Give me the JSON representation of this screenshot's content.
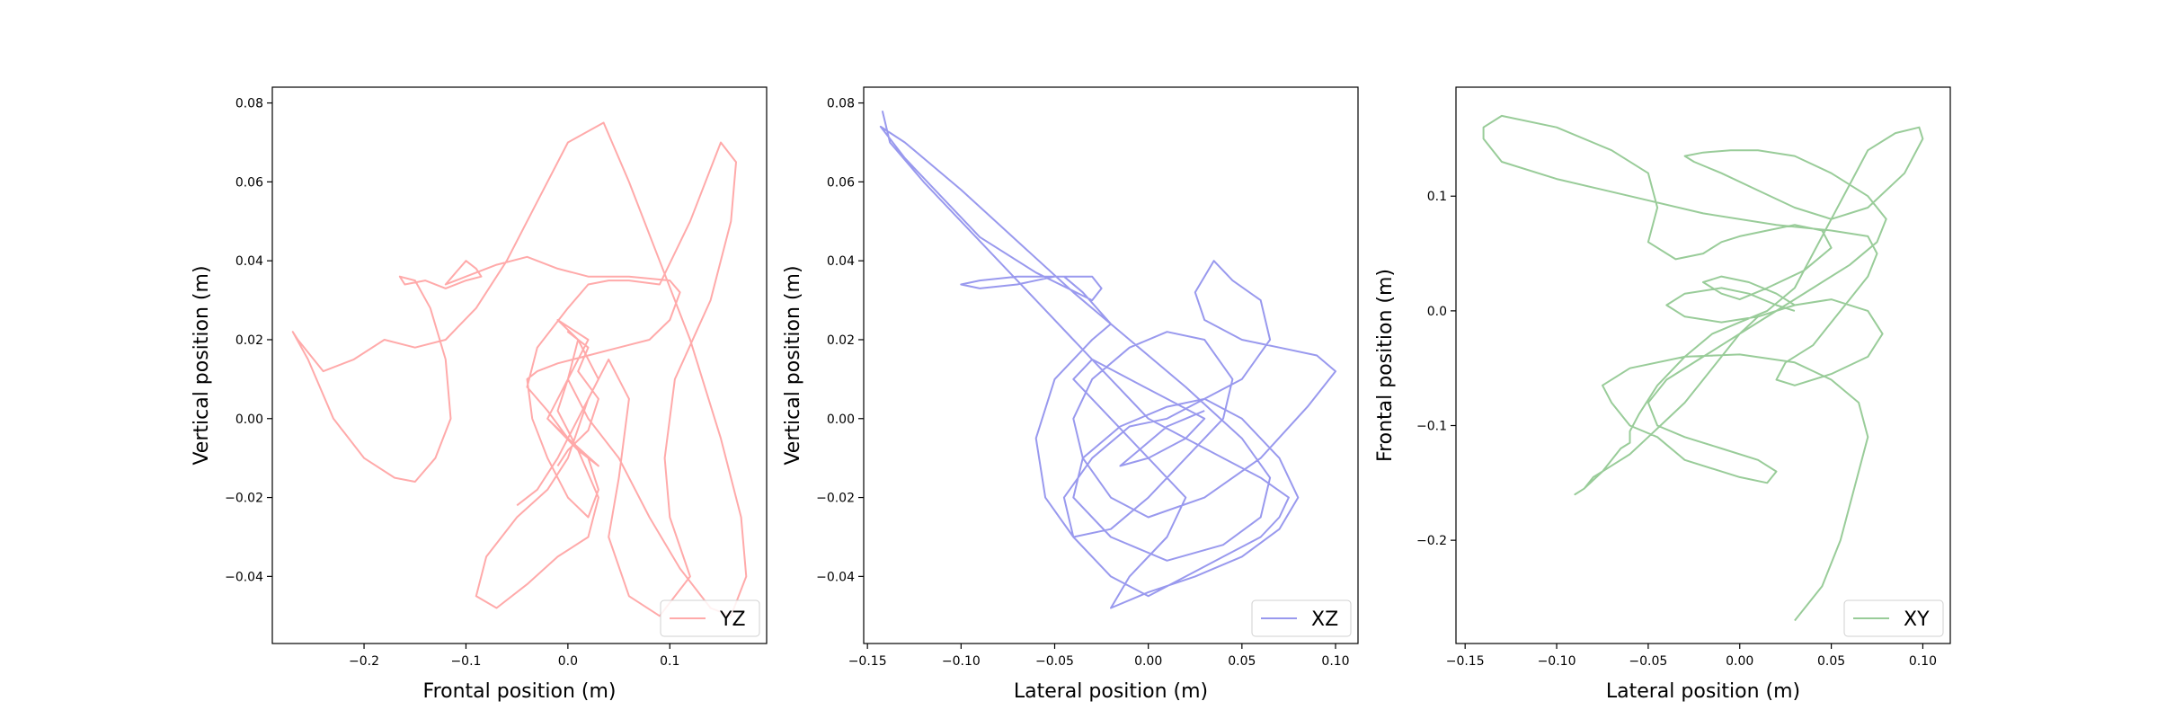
{
  "chart_data": [
    {
      "type": "line",
      "xlabel": "Frontal position (m)",
      "ylabel": "Vertical position  (m)",
      "xlim": [
        -0.29,
        0.195
      ],
      "ylim": [
        -0.057,
        0.084
      ],
      "xticks": [
        -0.2,
        -0.1,
        0.0,
        0.1
      ],
      "xtick_labels": [
        "−0.2",
        "−0.1",
        "0.0",
        "0.1"
      ],
      "yticks": [
        -0.04,
        -0.02,
        0.0,
        0.02,
        0.04,
        0.06,
        0.08
      ],
      "ytick_labels": [
        "−0.04",
        "−0.02",
        "0.00",
        "0.02",
        "0.04",
        "0.06",
        "0.08"
      ],
      "legend_position": "lower right",
      "series": [
        {
          "name": "YZ",
          "color": "#ffaaaa",
          "x": [
            -0.05,
            -0.03,
            -0.01,
            0.01,
            0.03,
            0.01,
            -0.01,
            0.02,
            0.0,
            -0.02,
            0.01,
            0.03,
            0.0,
            -0.02,
            -0.04,
            -0.03,
            0.0,
            0.02,
            0.04,
            0.06,
            0.09,
            0.12,
            0.15,
            0.165,
            0.16,
            0.14,
            0.105,
            0.095,
            0.1,
            0.12,
            0.09,
            0.06,
            0.04,
            0.05,
            0.06,
            0.04,
            0.02,
            0.0,
            -0.02,
            -0.05,
            -0.08,
            -0.09,
            -0.07,
            -0.04,
            -0.01,
            0.02,
            0.03,
            0.01,
            -0.01,
            0.0,
            0.02,
            0.05,
            0.08,
            0.11,
            0.14,
            0.16,
            0.175,
            0.17,
            0.15,
            0.12,
            0.09,
            0.06,
            0.035,
            0.0,
            -0.03,
            -0.06,
            -0.09,
            -0.12,
            -0.15,
            -0.18,
            -0.21,
            -0.24,
            -0.265,
            -0.27,
            -0.255,
            -0.23,
            -0.2,
            -0.17,
            -0.15,
            -0.13,
            -0.115,
            -0.12,
            -0.135,
            -0.15,
            -0.165,
            -0.16,
            -0.14,
            -0.12,
            -0.1,
            -0.085,
            -0.09,
            -0.1,
            -0.11,
            -0.12,
            -0.1,
            -0.07,
            -0.04,
            -0.01,
            0.02,
            0.06,
            0.1,
            0.11,
            0.1,
            0.08,
            0.05,
            0.02,
            -0.01,
            -0.03,
            -0.04,
            -0.035,
            -0.02,
            0.0,
            0.02,
            0.03,
            0.02,
            0.0,
            -0.02,
            0.0,
            0.01,
            0.0,
            0.02,
            0.01,
            0.03,
            0.02,
            0.0,
            -0.01
          ],
          "y": [
            -0.022,
            -0.018,
            -0.01,
            0.0,
            0.01,
            0.02,
            0.025,
            0.02,
            0.01,
            0.0,
            -0.008,
            -0.012,
            -0.005,
            0.002,
            0.008,
            0.018,
            0.028,
            0.034,
            0.035,
            0.035,
            0.034,
            0.05,
            0.07,
            0.065,
            0.05,
            0.03,
            0.01,
            -0.01,
            -0.025,
            -0.04,
            -0.05,
            -0.045,
            -0.03,
            -0.015,
            0.005,
            0.015,
            0.005,
            -0.01,
            -0.018,
            -0.025,
            -0.035,
            -0.045,
            -0.048,
            -0.042,
            -0.035,
            -0.03,
            -0.02,
            -0.008,
            0.002,
            0.01,
            0.0,
            -0.01,
            -0.025,
            -0.038,
            -0.048,
            -0.05,
            -0.04,
            -0.025,
            -0.005,
            0.02,
            0.04,
            0.06,
            0.075,
            0.07,
            0.055,
            0.04,
            0.028,
            0.02,
            0.018,
            0.02,
            0.015,
            0.012,
            0.02,
            0.022,
            0.015,
            0.0,
            -0.01,
            -0.015,
            -0.016,
            -0.01,
            0.0,
            0.015,
            0.028,
            0.035,
            0.036,
            0.034,
            0.035,
            0.033,
            0.035,
            0.036,
            0.038,
            0.04,
            0.037,
            0.034,
            0.036,
            0.039,
            0.041,
            0.038,
            0.036,
            0.036,
            0.035,
            0.032,
            0.025,
            0.02,
            0.018,
            0.016,
            0.014,
            0.012,
            0.01,
            0.0,
            -0.01,
            -0.02,
            -0.025,
            -0.018,
            -0.01,
            -0.005,
            0.0,
            0.01,
            0.02,
            0.022,
            0.018,
            0.012,
            0.005,
            -0.003,
            -0.008,
            -0.012
          ]
        }
      ]
    },
    {
      "type": "line",
      "xlabel": "Lateral position (m)",
      "ylabel": "Vertical position (m)",
      "xlim": [
        -0.152,
        0.112
      ],
      "ylim": [
        -0.057,
        0.084
      ],
      "xticks": [
        -0.15,
        -0.1,
        -0.05,
        0.0,
        0.05,
        0.1
      ],
      "xtick_labels": [
        "−0.15",
        "−0.10",
        "−0.05",
        "0.00",
        "0.05",
        "0.10"
      ],
      "yticks": [
        -0.04,
        -0.02,
        0.0,
        0.02,
        0.04,
        0.06,
        0.08
      ],
      "ytick_labels": [
        "−0.04",
        "−0.02",
        "0.00",
        "0.02",
        "0.04",
        "0.06",
        "0.08"
      ],
      "legend_position": "lower right",
      "series": [
        {
          "name": "XZ",
          "color": "#9999ee",
          "x": [
            -0.142,
            -0.138,
            -0.12,
            -0.1,
            -0.08,
            -0.06,
            -0.04,
            -0.02,
            0.0,
            0.02,
            0.04,
            0.06,
            0.075,
            0.07,
            0.06,
            0.04,
            0.02,
            0.0,
            -0.02,
            -0.04,
            -0.045,
            -0.03,
            -0.01,
            0.01,
            0.03,
            0.05,
            0.065,
            0.06,
            0.045,
            0.035,
            0.025,
            0.03,
            0.05,
            0.07,
            0.09,
            0.1,
            0.085,
            0.06,
            0.03,
            0.0,
            -0.02,
            -0.035,
            -0.04,
            -0.03,
            -0.01,
            0.01,
            0.03,
            0.045,
            0.04,
            0.02,
            0.0,
            -0.02,
            -0.04,
            -0.055,
            -0.06,
            -0.05,
            -0.03,
            -0.02,
            -0.035,
            -0.045,
            -0.07,
            -0.09,
            -0.1,
            -0.09,
            -0.07,
            -0.05,
            -0.03,
            -0.025,
            -0.03,
            -0.06,
            -0.09,
            -0.11,
            -0.13,
            -0.143,
            -0.13,
            -0.1,
            -0.07,
            -0.04,
            -0.01,
            0.02,
            0.05,
            0.065,
            0.06,
            0.04,
            0.01,
            -0.02,
            -0.04,
            -0.035,
            -0.015,
            0.01,
            0.03,
            0.05,
            0.07,
            0.08,
            0.07,
            0.05,
            0.025,
            0.0,
            -0.02,
            -0.01,
            0.01,
            0.02,
            0.0,
            -0.02,
            -0.04,
            -0.03,
            -0.01,
            0.01,
            0.03,
            0.02,
            0.0,
            -0.015,
            -0.005,
            0.01,
            0.02,
            0.03
          ],
          "y": [
            0.078,
            0.07,
            0.06,
            0.05,
            0.04,
            0.03,
            0.02,
            0.01,
            0.0,
            -0.005,
            -0.01,
            -0.015,
            -0.02,
            -0.025,
            -0.03,
            -0.035,
            -0.04,
            -0.045,
            -0.04,
            -0.03,
            -0.02,
            -0.01,
            -0.002,
            0.0,
            0.005,
            0.01,
            0.02,
            0.03,
            0.035,
            0.04,
            0.032,
            0.025,
            0.02,
            0.018,
            0.016,
            0.012,
            0.003,
            -0.01,
            -0.02,
            -0.025,
            -0.02,
            -0.01,
            0.0,
            0.01,
            0.018,
            0.022,
            0.02,
            0.01,
            0.0,
            -0.01,
            -0.02,
            -0.028,
            -0.03,
            -0.02,
            -0.005,
            0.01,
            0.02,
            0.024,
            0.032,
            0.036,
            0.036,
            0.035,
            0.034,
            0.033,
            0.034,
            0.036,
            0.036,
            0.033,
            0.03,
            0.037,
            0.046,
            0.056,
            0.066,
            0.074,
            0.07,
            0.058,
            0.045,
            0.032,
            0.02,
            0.008,
            -0.005,
            -0.015,
            -0.025,
            -0.032,
            -0.036,
            -0.03,
            -0.02,
            -0.01,
            -0.002,
            0.003,
            0.005,
            0.0,
            -0.01,
            -0.02,
            -0.028,
            -0.035,
            -0.04,
            -0.044,
            -0.048,
            -0.04,
            -0.03,
            -0.02,
            -0.01,
            0.0,
            0.01,
            0.015,
            0.01,
            0.005,
            0.0,
            -0.005,
            -0.01,
            -0.012,
            -0.008,
            -0.002,
            0.0,
            0.002
          ]
        }
      ]
    },
    {
      "type": "line",
      "xlabel": "Lateral position (m)",
      "ylabel": "Frontal position (m)",
      "xlim": [
        -0.155,
        0.115
      ],
      "ylim": [
        -0.29,
        0.195
      ],
      "xticks": [
        -0.15,
        -0.1,
        -0.05,
        0.0,
        0.05,
        0.1
      ],
      "xtick_labels": [
        "−0.15",
        "−0.10",
        "−0.05",
        "0.00",
        "0.05",
        "0.10"
      ],
      "yticks": [
        -0.2,
        -0.1,
        0.0,
        0.1
      ],
      "ytick_labels": [
        "−0.2",
        "−0.1",
        "0.0",
        "0.1"
      ],
      "legend_position": "lower right",
      "series": [
        {
          "name": "XY",
          "color": "#99cc99",
          "x": [
            0.03,
            0.045,
            0.055,
            0.06,
            0.065,
            0.07,
            0.065,
            0.05,
            0.03,
            0.0,
            -0.03,
            -0.06,
            -0.075,
            -0.07,
            -0.06,
            -0.045,
            -0.03,
            -0.01,
            0.0,
            0.015,
            0.02,
            0.01,
            -0.01,
            -0.03,
            -0.045,
            -0.05,
            -0.04,
            -0.02,
            0.0,
            0.02,
            0.04,
            0.06,
            0.075,
            0.08,
            0.07,
            0.05,
            0.03,
            0.01,
            -0.005,
            -0.02,
            -0.03,
            -0.025,
            -0.01,
            0.01,
            0.03,
            0.05,
            0.07,
            0.09,
            0.1,
            0.098,
            0.085,
            0.07,
            0.06,
            0.05,
            0.04,
            0.03,
            0.015,
            0.0,
            -0.015,
            -0.03,
            -0.045,
            -0.055,
            -0.06,
            -0.06,
            -0.065,
            -0.075,
            -0.085,
            -0.09,
            -0.085,
            -0.08,
            -0.07,
            -0.06,
            -0.05,
            -0.04,
            -0.03,
            -0.02,
            -0.01,
            0.0,
            0.01,
            0.03,
            0.05,
            0.07,
            0.078,
            0.07,
            0.05,
            0.03,
            0.02,
            0.025,
            0.04,
            0.05,
            0.06,
            0.07,
            0.075,
            0.07,
            0.05,
            0.02,
            -0.02,
            -0.06,
            -0.1,
            -0.13,
            -0.14,
            -0.14,
            -0.13,
            -0.1,
            -0.07,
            -0.05,
            -0.045,
            -0.05,
            -0.035,
            -0.02,
            -0.01,
            0.0,
            0.015,
            0.03,
            0.045,
            0.05,
            0.035,
            0.015,
            0.0,
            -0.01,
            -0.02,
            -0.01,
            0.005,
            0.02,
            0.03,
            0.01,
            -0.01,
            -0.03,
            -0.04,
            -0.03,
            -0.01,
            0.005,
            0.02,
            0.03
          ],
          "y": [
            -0.27,
            -0.24,
            -0.2,
            -0.17,
            -0.14,
            -0.11,
            -0.08,
            -0.06,
            -0.045,
            -0.038,
            -0.04,
            -0.05,
            -0.065,
            -0.08,
            -0.1,
            -0.11,
            -0.13,
            -0.14,
            -0.145,
            -0.15,
            -0.14,
            -0.13,
            -0.12,
            -0.11,
            -0.1,
            -0.08,
            -0.06,
            -0.04,
            -0.02,
            0.0,
            0.02,
            0.04,
            0.06,
            0.08,
            0.1,
            0.12,
            0.135,
            0.14,
            0.14,
            0.138,
            0.135,
            0.13,
            0.12,
            0.105,
            0.09,
            0.08,
            0.09,
            0.12,
            0.15,
            0.16,
            0.155,
            0.14,
            0.11,
            0.08,
            0.05,
            0.02,
            0.0,
            -0.01,
            -0.02,
            -0.04,
            -0.065,
            -0.09,
            -0.105,
            -0.115,
            -0.12,
            -0.14,
            -0.155,
            -0.16,
            -0.155,
            -0.145,
            -0.135,
            -0.125,
            -0.11,
            -0.095,
            -0.08,
            -0.06,
            -0.04,
            -0.02,
            -0.005,
            0.005,
            0.01,
            0.0,
            -0.02,
            -0.04,
            -0.055,
            -0.065,
            -0.06,
            -0.045,
            -0.03,
            -0.01,
            0.01,
            0.03,
            0.05,
            0.065,
            0.07,
            0.075,
            0.085,
            0.1,
            0.115,
            0.13,
            0.15,
            0.16,
            0.17,
            0.16,
            0.14,
            0.12,
            0.09,
            0.06,
            0.045,
            0.05,
            0.06,
            0.065,
            0.07,
            0.075,
            0.07,
            0.055,
            0.035,
            0.02,
            0.01,
            0.015,
            0.025,
            0.03,
            0.025,
            0.015,
            0.005,
            -0.005,
            -0.01,
            -0.005,
            0.005,
            0.015,
            0.02,
            0.015,
            0.005,
            0.0
          ]
        }
      ]
    }
  ]
}
